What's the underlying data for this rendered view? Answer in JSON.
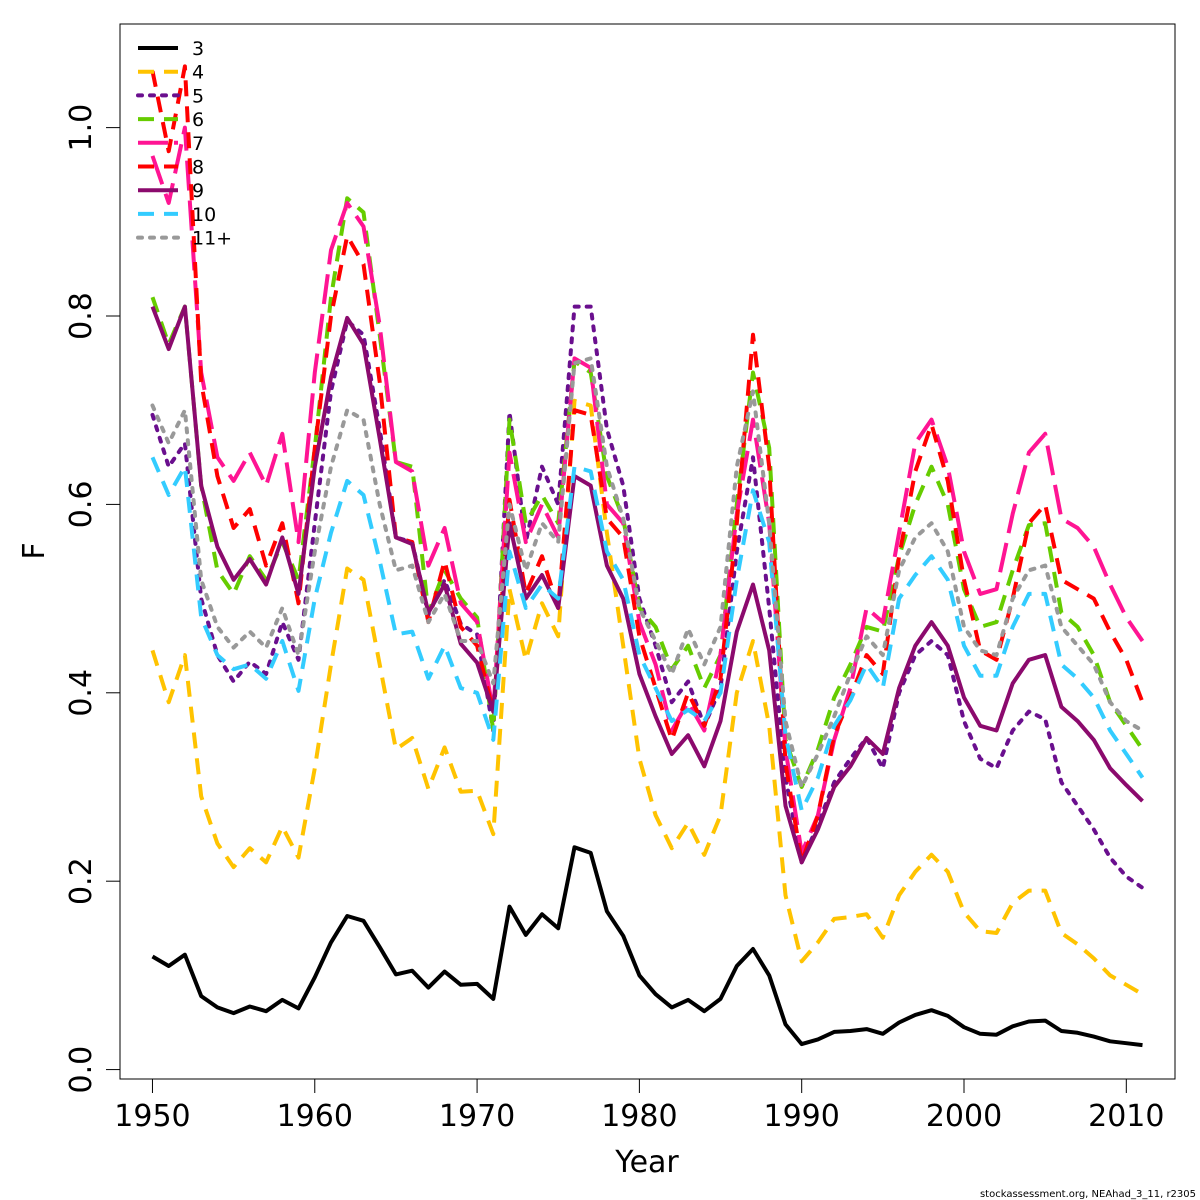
{
  "chart_data": {
    "type": "line",
    "xlabel": "Year",
    "ylabel": "F",
    "xlim": [
      1948,
      2013
    ],
    "ylim": [
      -0.01,
      1.11
    ],
    "xticks": [
      1950,
      1960,
      1970,
      1980,
      1990,
      2000,
      2010
    ],
    "yticks": [
      0.0,
      0.2,
      0.4,
      0.6,
      0.8,
      1.0
    ],
    "ytick_labels": [
      "0.0",
      "0.2",
      "0.4",
      "0.6",
      "0.8",
      "1.0"
    ],
    "legend_position": "top-left",
    "grid": false,
    "footer": "stockassessment.org, NEAhad_3_11, r2305",
    "x": [
      1950,
      1951,
      1952,
      1953,
      1954,
      1955,
      1956,
      1957,
      1958,
      1959,
      1960,
      1961,
      1962,
      1963,
      1964,
      1965,
      1966,
      1967,
      1968,
      1969,
      1970,
      1971,
      1972,
      1973,
      1974,
      1975,
      1976,
      1977,
      1978,
      1979,
      1980,
      1981,
      1982,
      1983,
      1984,
      1985,
      1986,
      1987,
      1988,
      1989,
      1990,
      1991,
      1992,
      1993,
      1994,
      1995,
      1996,
      1997,
      1998,
      1999,
      2000,
      2001,
      2002,
      2003,
      2004,
      2005,
      2006,
      2007,
      2008,
      2009,
      2010,
      2011
    ],
    "series": [
      {
        "name": "3",
        "color": "#000000",
        "dash": "solid",
        "width": 4,
        "values": [
          0.12,
          0.11,
          0.122,
          0.078,
          0.066,
          0.06,
          0.067,
          0.062,
          0.074,
          0.065,
          0.098,
          0.135,
          0.163,
          0.158,
          0.13,
          0.101,
          0.105,
          0.087,
          0.104,
          0.09,
          0.091,
          0.075,
          0.173,
          0.143,
          0.165,
          0.15,
          0.236,
          0.23,
          0.168,
          0.142,
          0.1,
          0.08,
          0.066,
          0.074,
          0.062,
          0.075,
          0.11,
          0.128,
          0.1,
          0.048,
          0.027,
          0.032,
          0.04,
          0.041,
          0.043,
          0.038,
          0.05,
          0.058,
          0.063,
          0.057,
          0.045,
          0.038,
          0.037,
          0.046,
          0.051,
          0.052,
          0.041,
          0.039,
          0.035,
          0.03,
          0.028,
          0.026
        ]
      },
      {
        "name": "4",
        "color": "#ffc300",
        "dash": "dashed",
        "width": 4,
        "values": [
          0.445,
          0.39,
          0.44,
          0.29,
          0.24,
          0.215,
          0.235,
          0.22,
          0.258,
          0.225,
          0.32,
          0.43,
          0.532,
          0.52,
          0.43,
          0.34,
          0.352,
          0.298,
          0.342,
          0.295,
          0.296,
          0.25,
          0.51,
          0.435,
          0.495,
          0.46,
          0.71,
          0.705,
          0.57,
          0.45,
          0.33,
          0.27,
          0.235,
          0.262,
          0.228,
          0.27,
          0.4,
          0.455,
          0.365,
          0.185,
          0.115,
          0.135,
          0.16,
          0.162,
          0.165,
          0.14,
          0.185,
          0.21,
          0.228,
          0.21,
          0.167,
          0.147,
          0.145,
          0.177,
          0.19,
          0.19,
          0.145,
          0.133,
          0.118,
          0.1,
          0.09,
          0.08
        ]
      },
      {
        "name": "5",
        "color": "#6a0f8e",
        "dash": "dotted",
        "width": 4,
        "values": [
          0.695,
          0.64,
          0.665,
          0.5,
          0.44,
          0.412,
          0.433,
          0.42,
          0.475,
          0.435,
          0.58,
          0.72,
          0.795,
          0.78,
          0.68,
          0.565,
          0.56,
          0.483,
          0.52,
          0.473,
          0.462,
          0.36,
          0.698,
          0.56,
          0.64,
          0.6,
          0.81,
          0.81,
          0.68,
          0.62,
          0.5,
          0.45,
          0.39,
          0.412,
          0.365,
          0.405,
          0.55,
          0.65,
          0.49,
          0.31,
          0.22,
          0.26,
          0.305,
          0.33,
          0.352,
          0.32,
          0.4,
          0.44,
          0.455,
          0.44,
          0.37,
          0.33,
          0.32,
          0.36,
          0.38,
          0.372,
          0.305,
          0.28,
          0.255,
          0.225,
          0.205,
          0.193
        ]
      },
      {
        "name": "6",
        "color": "#66cc00",
        "dash": "dashed",
        "width": 4,
        "values": [
          0.82,
          0.77,
          0.81,
          0.62,
          0.53,
          0.505,
          0.545,
          0.52,
          0.56,
          0.52,
          0.66,
          0.82,
          0.925,
          0.91,
          0.78,
          0.645,
          0.64,
          0.485,
          0.53,
          0.5,
          0.48,
          0.36,
          0.69,
          0.58,
          0.61,
          0.58,
          0.752,
          0.74,
          0.63,
          0.585,
          0.49,
          0.47,
          0.425,
          0.45,
          0.405,
          0.44,
          0.6,
          0.74,
          0.66,
          0.35,
          0.3,
          0.34,
          0.395,
          0.43,
          0.47,
          0.465,
          0.545,
          0.6,
          0.64,
          0.6,
          0.51,
          0.47,
          0.475,
          0.53,
          0.578,
          0.58,
          0.485,
          0.47,
          0.44,
          0.39,
          0.365,
          0.34
        ]
      },
      {
        "name": "7",
        "color": "#ff1493",
        "dash": "longdash",
        "width": 4,
        "values": [
          0.97,
          0.92,
          1.0,
          0.74,
          0.65,
          0.625,
          0.655,
          0.62,
          0.675,
          0.56,
          0.74,
          0.87,
          0.92,
          0.895,
          0.79,
          0.645,
          0.635,
          0.535,
          0.575,
          0.495,
          0.475,
          0.38,
          0.655,
          0.56,
          0.6,
          0.565,
          0.755,
          0.745,
          0.6,
          0.58,
          0.475,
          0.43,
          0.36,
          0.39,
          0.36,
          0.44,
          0.59,
          0.69,
          0.58,
          0.34,
          0.23,
          0.27,
          0.35,
          0.405,
          0.49,
          0.475,
          0.57,
          0.665,
          0.69,
          0.64,
          0.55,
          0.505,
          0.51,
          0.59,
          0.655,
          0.675,
          0.585,
          0.575,
          0.555,
          0.515,
          0.48,
          0.455
        ]
      },
      {
        "name": "8",
        "color": "#ff0000",
        "dash": "dashed",
        "width": 4,
        "values": [
          1.06,
          0.975,
          1.065,
          0.73,
          0.63,
          0.575,
          0.595,
          0.535,
          0.58,
          0.495,
          0.66,
          0.8,
          0.885,
          0.855,
          0.73,
          0.565,
          0.56,
          0.475,
          0.54,
          0.47,
          0.45,
          0.38,
          0.605,
          0.505,
          0.545,
          0.49,
          0.7,
          0.695,
          0.585,
          0.565,
          0.46,
          0.405,
          0.35,
          0.4,
          0.365,
          0.415,
          0.58,
          0.78,
          0.64,
          0.325,
          0.22,
          0.27,
          0.355,
          0.395,
          0.44,
          0.42,
          0.545,
          0.635,
          0.685,
          0.625,
          0.52,
          0.445,
          0.435,
          0.5,
          0.58,
          0.6,
          0.52,
          0.51,
          0.5,
          0.465,
          0.435,
          0.39
        ]
      },
      {
        "name": "9",
        "color": "#8b0a6d",
        "dash": "solid",
        "width": 4,
        "values": [
          0.81,
          0.765,
          0.81,
          0.62,
          0.555,
          0.52,
          0.542,
          0.515,
          0.565,
          0.505,
          0.64,
          0.735,
          0.798,
          0.77,
          0.67,
          0.565,
          0.558,
          0.485,
          0.515,
          0.452,
          0.432,
          0.38,
          0.58,
          0.5,
          0.525,
          0.49,
          0.63,
          0.62,
          0.535,
          0.5,
          0.42,
          0.375,
          0.335,
          0.355,
          0.322,
          0.37,
          0.465,
          0.515,
          0.445,
          0.28,
          0.22,
          0.255,
          0.3,
          0.322,
          0.352,
          0.335,
          0.405,
          0.45,
          0.475,
          0.45,
          0.395,
          0.365,
          0.36,
          0.41,
          0.435,
          0.44,
          0.385,
          0.37,
          0.35,
          0.32,
          0.302,
          0.285
        ]
      },
      {
        "name": "10",
        "color": "#33ccff",
        "dash": "dashed",
        "width": 4,
        "values": [
          0.65,
          0.61,
          0.64,
          0.48,
          0.44,
          0.425,
          0.43,
          0.415,
          0.455,
          0.402,
          0.5,
          0.57,
          0.625,
          0.61,
          0.54,
          0.462,
          0.465,
          0.415,
          0.45,
          0.405,
          0.4,
          0.35,
          0.55,
          0.49,
          0.515,
          0.5,
          0.64,
          0.635,
          0.55,
          0.52,
          0.44,
          0.405,
          0.37,
          0.382,
          0.37,
          0.4,
          0.52,
          0.615,
          0.56,
          0.355,
          0.275,
          0.31,
          0.365,
          0.392,
          0.43,
          0.405,
          0.5,
          0.525,
          0.545,
          0.52,
          0.45,
          0.418,
          0.418,
          0.47,
          0.505,
          0.505,
          0.43,
          0.415,
          0.395,
          0.36,
          0.335,
          0.31
        ]
      },
      {
        "name": "11+",
        "color": "#999999",
        "dash": "dotted",
        "width": 4,
        "values": [
          0.705,
          0.665,
          0.7,
          0.52,
          0.47,
          0.448,
          0.465,
          0.448,
          0.49,
          0.44,
          0.55,
          0.64,
          0.7,
          0.69,
          0.6,
          0.53,
          0.535,
          0.475,
          0.505,
          0.455,
          0.455,
          0.41,
          0.6,
          0.53,
          0.58,
          0.56,
          0.75,
          0.755,
          0.64,
          0.585,
          0.49,
          0.455,
          0.42,
          0.468,
          0.43,
          0.47,
          0.64,
          0.72,
          0.58,
          0.37,
          0.3,
          0.335,
          0.375,
          0.42,
          0.46,
          0.44,
          0.53,
          0.565,
          0.58,
          0.55,
          0.47,
          0.445,
          0.44,
          0.5,
          0.53,
          0.535,
          0.47,
          0.45,
          0.43,
          0.39,
          0.37,
          0.36
        ]
      }
    ]
  }
}
